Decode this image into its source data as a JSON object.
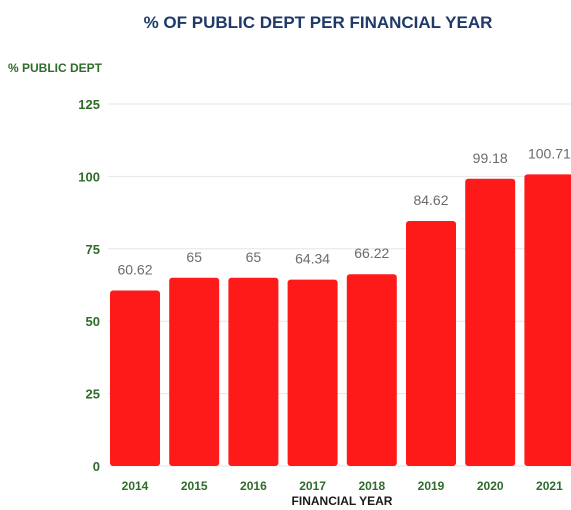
{
  "chart_data": {
    "type": "bar",
    "title": "% OF PUBLIC DEPT PER FINANCIAL YEAR",
    "ylabel": "% PUBLIC DEPT",
    "xlabel": "FINANCIAL YEAR",
    "categories": [
      "2014",
      "2015",
      "2016",
      "2017",
      "2018",
      "2019",
      "2020",
      "2021"
    ],
    "values": [
      60.62,
      65,
      65,
      64.34,
      66.22,
      84.62,
      99.18,
      100.71
    ],
    "data_labels": [
      "60.62",
      "65",
      "65",
      "64.34",
      "66.22",
      "84.62",
      "99.18",
      "100.71"
    ],
    "ylim": [
      0,
      125
    ],
    "yticks": [
      "0",
      "25",
      "50",
      "75",
      "100",
      "125"
    ],
    "grid": true,
    "bar_color": "#ff1a1a"
  }
}
